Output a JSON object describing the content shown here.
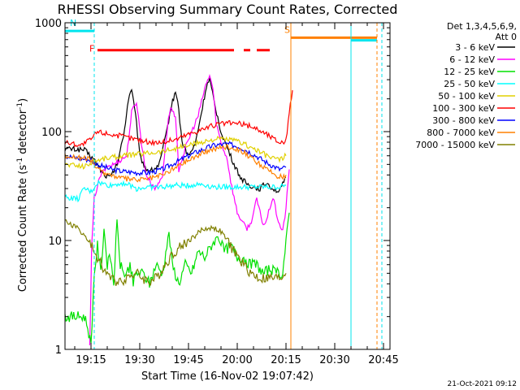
{
  "chart_data": {
    "type": "line",
    "title": "RHESSI Observing Summary Count Rates, Corrected",
    "xlabel": "Start Time (16-Nov-02 19:07:42)",
    "ylabel": "Corrected Count Rate (s-1 detector-1)",
    "ylabel_parts": {
      "main": "Corrected Count Rate (s",
      "sup1": "-1",
      "mid": " detector",
      "sup2": "-1",
      "end": ")"
    },
    "y_scale": "log",
    "ylim": [
      1,
      1000
    ],
    "xlim_minutes": [
      0,
      100
    ],
    "x_ticks": [
      {
        "min": 8,
        "label": "19:15"
      },
      {
        "min": 23,
        "label": "19:30"
      },
      {
        "min": 38,
        "label": "19:45"
      },
      {
        "min": 53,
        "label": "20:00"
      },
      {
        "min": 68,
        "label": "20:15"
      },
      {
        "min": 83,
        "label": "20:30"
      },
      {
        "min": 98,
        "label": "20:45"
      }
    ],
    "y_ticks": [
      {
        "value": 1,
        "label": "1"
      },
      {
        "value": 10,
        "label": "10"
      },
      {
        "value": 100,
        "label": "100"
      },
      {
        "value": 1000,
        "label": "1000"
      }
    ],
    "legend_header": [
      "Det 1,3,4,5,6,9,",
      "Att 0"
    ],
    "legend_placement": "right",
    "series": [
      {
        "name": "3 - 6 keV",
        "color": "#000000",
        "points": [
          [
            0,
            70
          ],
          [
            6,
            68
          ],
          [
            9,
            55
          ],
          [
            12,
            40
          ],
          [
            14,
            38
          ],
          [
            16,
            50
          ],
          [
            18,
            90
          ],
          [
            19.5,
            200
          ],
          [
            20.5,
            250
          ],
          [
            22,
            120
          ],
          [
            23,
            60
          ],
          [
            25,
            45
          ],
          [
            27,
            44
          ],
          [
            29,
            50
          ],
          [
            31,
            90
          ],
          [
            32.5,
            160
          ],
          [
            34,
            240
          ],
          [
            35,
            160
          ],
          [
            36,
            80
          ],
          [
            38,
            60
          ],
          [
            40,
            75
          ],
          [
            42,
            150
          ],
          [
            43.5,
            260
          ],
          [
            44.5,
            300
          ],
          [
            46,
            180
          ],
          [
            48,
            100
          ],
          [
            50,
            70
          ],
          [
            52,
            50
          ],
          [
            54,
            38
          ],
          [
            56,
            33
          ],
          [
            58,
            31
          ],
          [
            60,
            30
          ],
          [
            62,
            34
          ],
          [
            64,
            30
          ],
          [
            66,
            28
          ],
          [
            68,
            38
          ]
        ]
      },
      {
        "name": "6 - 12 keV",
        "color": "#ff00ff",
        "points": [
          [
            7.6,
            1
          ],
          [
            8.2,
            8
          ],
          [
            9,
            25
          ],
          [
            11,
            40
          ],
          [
            13,
            48
          ],
          [
            15,
            50
          ],
          [
            17,
            55
          ],
          [
            19,
            60
          ],
          [
            20.5,
            150
          ],
          [
            22,
            190
          ],
          [
            23.5,
            80
          ],
          [
            25,
            40
          ],
          [
            27,
            32
          ],
          [
            28,
            30
          ],
          [
            30,
            40
          ],
          [
            31.5,
            110
          ],
          [
            32.5,
            170
          ],
          [
            34,
            130
          ],
          [
            35,
            45
          ],
          [
            37,
            70
          ],
          [
            39,
            100
          ],
          [
            41,
            140
          ],
          [
            43,
            250
          ],
          [
            44.5,
            330
          ],
          [
            45.5,
            250
          ],
          [
            46.5,
            120
          ],
          [
            48,
            80
          ],
          [
            50,
            55
          ],
          [
            51,
            35
          ],
          [
            52,
            25
          ],
          [
            53,
            18
          ],
          [
            54,
            16
          ],
          [
            55,
            14
          ],
          [
            56,
            13
          ],
          [
            57,
            14
          ],
          [
            58,
            18
          ],
          [
            59,
            24
          ],
          [
            60,
            18
          ],
          [
            61,
            14
          ],
          [
            62,
            15
          ],
          [
            63,
            20
          ],
          [
            64,
            25
          ],
          [
            65,
            18
          ],
          [
            66,
            14
          ],
          [
            67,
            12
          ],
          [
            68,
            20
          ],
          [
            69,
            45
          ]
        ]
      },
      {
        "name": "12 - 25 keV",
        "color": "#00e000",
        "points": [
          [
            0,
            2
          ],
          [
            6,
            2
          ],
          [
            7,
            1.6
          ],
          [
            8,
            1.1
          ],
          [
            9,
            5
          ],
          [
            10,
            9
          ],
          [
            11,
            5
          ],
          [
            12,
            13
          ],
          [
            13,
            6
          ],
          [
            14,
            7
          ],
          [
            15,
            4
          ],
          [
            16,
            15
          ],
          [
            17,
            6
          ],
          [
            18,
            5
          ],
          [
            19,
            5
          ],
          [
            20,
            6
          ],
          [
            21,
            4
          ],
          [
            22,
            5
          ],
          [
            24,
            5
          ],
          [
            26,
            4
          ],
          [
            28,
            6
          ],
          [
            30,
            5
          ],
          [
            32,
            12
          ],
          [
            33,
            6
          ],
          [
            35,
            4
          ],
          [
            37,
            6
          ],
          [
            39,
            5
          ],
          [
            41,
            8
          ],
          [
            43,
            7
          ],
          [
            45,
            9
          ],
          [
            47,
            11
          ],
          [
            49,
            8
          ],
          [
            51,
            9
          ],
          [
            53,
            7
          ],
          [
            55,
            7
          ],
          [
            57,
            6
          ],
          [
            59,
            6
          ],
          [
            61,
            5
          ],
          [
            63,
            5.5
          ],
          [
            65,
            5
          ],
          [
            67,
            5
          ],
          [
            68,
            10
          ],
          [
            69,
            18
          ]
        ]
      },
      {
        "name": "25 - 50 keV",
        "color": "#00ffff",
        "points": [
          [
            0,
            25
          ],
          [
            4,
            24
          ],
          [
            6,
            30
          ],
          [
            8,
            28
          ],
          [
            10,
            34
          ],
          [
            14,
            32
          ],
          [
            18,
            34
          ],
          [
            22,
            30
          ],
          [
            26,
            31
          ],
          [
            30,
            31
          ],
          [
            34,
            32
          ],
          [
            38,
            32
          ],
          [
            42,
            33
          ],
          [
            46,
            31
          ],
          [
            50,
            31
          ],
          [
            54,
            31
          ],
          [
            58,
            31
          ],
          [
            62,
            31
          ],
          [
            66,
            31
          ],
          [
            68,
            32
          ]
        ]
      },
      {
        "name": "50 - 100 keV",
        "color": "#e0d000",
        "points": [
          [
            0,
            50
          ],
          [
            6,
            48
          ],
          [
            10,
            55
          ],
          [
            14,
            58
          ],
          [
            18,
            60
          ],
          [
            22,
            62
          ],
          [
            26,
            64
          ],
          [
            30,
            66
          ],
          [
            34,
            70
          ],
          [
            38,
            75
          ],
          [
            42,
            80
          ],
          [
            46,
            85
          ],
          [
            50,
            85
          ],
          [
            54,
            80
          ],
          [
            58,
            70
          ],
          [
            62,
            60
          ],
          [
            66,
            55
          ],
          [
            68,
            60
          ]
        ]
      },
      {
        "name": "100 - 300 keV",
        "color": "#ff0000",
        "points": [
          [
            0,
            80
          ],
          [
            5,
            75
          ],
          [
            8,
            85
          ],
          [
            10,
            100
          ],
          [
            14,
            95
          ],
          [
            18,
            90
          ],
          [
            22,
            85
          ],
          [
            26,
            80
          ],
          [
            30,
            80
          ],
          [
            34,
            85
          ],
          [
            38,
            95
          ],
          [
            42,
            105
          ],
          [
            46,
            115
          ],
          [
            50,
            120
          ],
          [
            54,
            118
          ],
          [
            58,
            110
          ],
          [
            62,
            95
          ],
          [
            66,
            80
          ],
          [
            68,
            82
          ],
          [
            69,
            150
          ],
          [
            70,
            240
          ]
        ]
      },
      {
        "name": "300 - 800 keV",
        "color": "#0000ff",
        "points": [
          [
            0,
            60
          ],
          [
            4,
            57
          ],
          [
            8,
            55
          ],
          [
            10,
            50
          ],
          [
            14,
            45
          ],
          [
            18,
            43
          ],
          [
            22,
            42
          ],
          [
            26,
            42
          ],
          [
            30,
            45
          ],
          [
            34,
            52
          ],
          [
            38,
            60
          ],
          [
            42,
            68
          ],
          [
            46,
            75
          ],
          [
            50,
            77
          ],
          [
            54,
            72
          ],
          [
            58,
            62
          ],
          [
            62,
            52
          ],
          [
            66,
            45
          ],
          [
            68,
            47
          ]
        ]
      },
      {
        "name": "800 - 7000 keV",
        "color": "#ff8000",
        "points": [
          [
            0,
            60
          ],
          [
            4,
            58
          ],
          [
            8,
            55
          ],
          [
            10,
            45
          ],
          [
            14,
            40
          ],
          [
            18,
            37
          ],
          [
            22,
            36
          ],
          [
            26,
            37
          ],
          [
            30,
            40
          ],
          [
            34,
            47
          ],
          [
            38,
            55
          ],
          [
            42,
            63
          ],
          [
            46,
            70
          ],
          [
            50,
            73
          ],
          [
            54,
            68
          ],
          [
            58,
            55
          ],
          [
            62,
            45
          ],
          [
            66,
            38
          ],
          [
            68,
            40
          ]
        ]
      },
      {
        "name": "7000 - 15000 keV",
        "color": "#808000",
        "points": [
          [
            0,
            15
          ],
          [
            4,
            13
          ],
          [
            6,
            11
          ],
          [
            8,
            9
          ],
          [
            10,
            7
          ],
          [
            12,
            5.5
          ],
          [
            14,
            4.5
          ],
          [
            16,
            4.2
          ],
          [
            18,
            4.4
          ],
          [
            20,
            4.8
          ],
          [
            22,
            5
          ],
          [
            24,
            4.5
          ],
          [
            26,
            4.2
          ],
          [
            28,
            4.5
          ],
          [
            30,
            5.5
          ],
          [
            32,
            6.8
          ],
          [
            34,
            8
          ],
          [
            36,
            9
          ],
          [
            38,
            10
          ],
          [
            40,
            11
          ],
          [
            42,
            12.5
          ],
          [
            44,
            13
          ],
          [
            46,
            13
          ],
          [
            48,
            12
          ],
          [
            50,
            10
          ],
          [
            52,
            8
          ],
          [
            54,
            6.5
          ],
          [
            56,
            5.5
          ],
          [
            58,
            4.8
          ],
          [
            60,
            4.5
          ],
          [
            62,
            4.5
          ],
          [
            64,
            4.5
          ],
          [
            66,
            4.5
          ],
          [
            68,
            5
          ]
        ]
      }
    ],
    "flag_bars": [
      {
        "label": "N",
        "label_color": "#00e5ee",
        "color": "#00e5ee",
        "y": 840,
        "segments": [
          [
            0,
            9
          ]
        ]
      },
      {
        "label": "",
        "label_color": "#00e5ee",
        "color": "#00e5ee",
        "y": 690,
        "segments": [
          [
            88,
            96
          ]
        ]
      },
      {
        "label": "F",
        "label_color": "#ff0000",
        "color": "#ff0000",
        "y": 560,
        "segments": [
          [
            10,
            52
          ],
          [
            55,
            57
          ],
          [
            59,
            63
          ]
        ]
      },
      {
        "label": "S",
        "label_color": "#ff8000",
        "color": "#ff8000",
        "y": 730,
        "segments": [
          [
            69.5,
            96
          ]
        ]
      }
    ],
    "vertical_markers": [
      {
        "x": 9,
        "color": "#00e5ee",
        "style": "dashed"
      },
      {
        "x": 69.5,
        "color": "#ff8000",
        "style": "solid"
      },
      {
        "x": 88,
        "color": "#00e5ee",
        "style": "solid"
      },
      {
        "x": 96,
        "color": "#ff8000",
        "style": "dashed"
      },
      {
        "x": 97.5,
        "color": "#00e5ee",
        "style": "dashed"
      }
    ],
    "timestamp": "21-Oct-2021 09:12"
  }
}
